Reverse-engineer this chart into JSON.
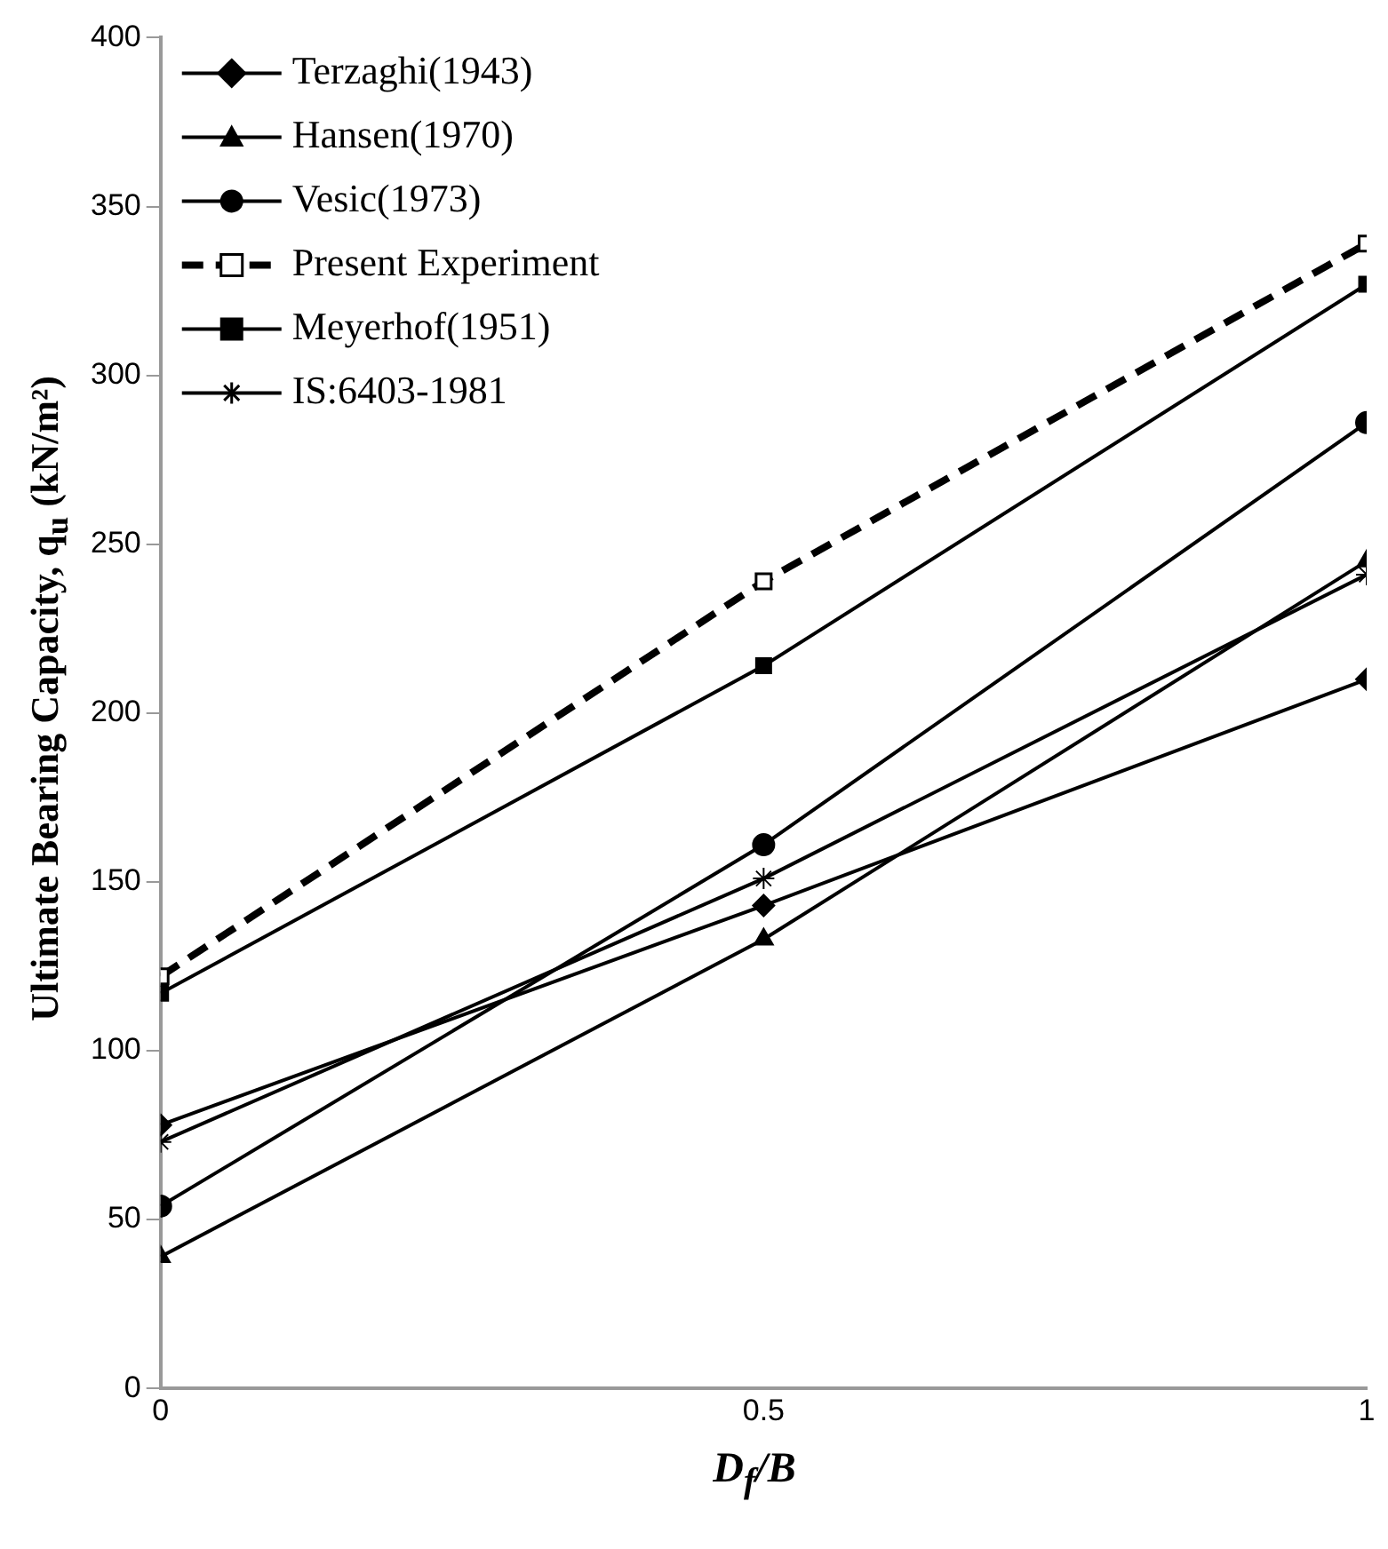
{
  "chart_data": {
    "type": "line",
    "xlabel": "D$_{f}$/B",
    "ylabel": "Ultimate Bearing Capacity, q$_{u}$ (kN/m²)",
    "x": [
      0,
      0.5,
      1
    ],
    "xlim": [
      0,
      1
    ],
    "xticks": [
      0,
      0.5,
      1
    ],
    "ylim": [
      0,
      400
    ],
    "yticks": [
      0,
      50,
      100,
      150,
      200,
      250,
      300,
      350,
      400
    ],
    "grid": false,
    "legend": "top left",
    "series": [
      {
        "name": "Terzaghi(1943)",
        "color": "#000000",
        "marker": "diamond",
        "line_style": "solid",
        "values": [
          78,
          143,
          210
        ]
      },
      {
        "name": "Hansen(1970)",
        "color": "#000000",
        "marker": "triangle",
        "line_style": "solid",
        "values": [
          39,
          133,
          245
        ]
      },
      {
        "name": "Vesic(1973)",
        "color": "#000000",
        "marker": "circle",
        "line_style": "solid",
        "values": [
          54,
          161,
          286
        ]
      },
      {
        "name": "Present Experiment",
        "color": "#000000",
        "marker": "square",
        "line_style": "dashed",
        "values": [
          122,
          239,
          339
        ]
      },
      {
        "name": "Meyerhof(1951)",
        "color": "#000000",
        "marker": "square",
        "line_style": "solid",
        "values": [
          117,
          214,
          327
        ]
      },
      {
        "name": "IS:6403-1981",
        "color": "#000000",
        "marker": "cross",
        "line_style": "solid",
        "values": [
          73,
          151,
          241
        ]
      }
    ]
  }
}
